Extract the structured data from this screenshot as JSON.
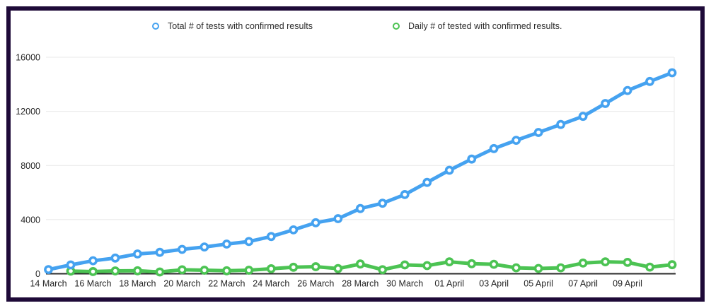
{
  "chart_data": {
    "type": "line",
    "title": "",
    "xlabel": "",
    "ylabel": "",
    "x": [
      "14 March",
      "15 March",
      "16 March",
      "17 March",
      "18 March",
      "19 March",
      "20 March",
      "21 March",
      "22 March",
      "23 March",
      "24 March",
      "25 March",
      "26 March",
      "27 March",
      "28 March",
      "29 March",
      "30 March",
      "31 March",
      "01 April",
      "02 April",
      "03 April",
      "04 April",
      "05 April",
      "06 April",
      "07 April",
      "08 April",
      "09 April",
      "10 April",
      "11 April"
    ],
    "x_label_step": 2,
    "x_last_labeled_index": 26,
    "series": [
      {
        "name": "Total # of tests with confirmed results",
        "color": "#45A2F0",
        "values": [
          310,
          650,
          960,
          1160,
          1460,
          1580,
          1800,
          1980,
          2190,
          2380,
          2750,
          3240,
          3770,
          4070,
          4820,
          5210,
          5850,
          6750,
          7650,
          8470,
          9250,
          9860,
          10440,
          11030,
          11630,
          12580,
          13540,
          14210,
          14850
        ]
      },
      {
        "name": "Daily # of tested with confirmed results.",
        "color": "#4CC353",
        "values": [
          null,
          200,
          160,
          210,
          220,
          130,
          290,
          260,
          220,
          260,
          370,
          480,
          520,
          380,
          720,
          300,
          650,
          600,
          880,
          740,
          700,
          440,
          390,
          440,
          790,
          880,
          840,
          490,
          670
        ]
      }
    ],
    "ylim": [
      0,
      16000
    ],
    "y_ticks": [
      0,
      4000,
      8000,
      12000,
      16000
    ],
    "grid": "horizontal",
    "legend_position": "top"
  },
  "colors": {
    "frame_border": "#1e0a38",
    "gridline": "#e8e8e8",
    "axis_line": "#2b2b2b",
    "tick_text": "#262626",
    "background": "#ffffff"
  }
}
